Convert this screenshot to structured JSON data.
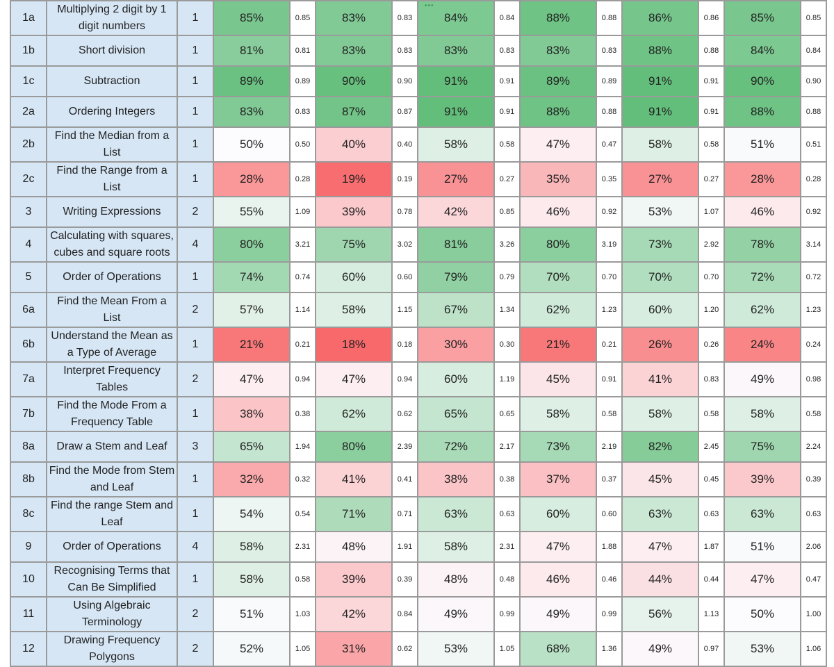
{
  "colors": {
    "header_cell": "#d6e6f5",
    "grid_line": "#9a9a9a",
    "scale_low": "#f8696b",
    "scale_mid": "#fcfcff",
    "scale_high": "#63be7b"
  },
  "groups": 6,
  "rows": [
    {
      "q": "1a",
      "topic": "Multiplying 2 digit by 1 digit numbers",
      "marks": "1",
      "pct": [
        "85%",
        "83%",
        "84%",
        "88%",
        "86%",
        "85%"
      ],
      "score": [
        "0.85",
        "0.83",
        "0.84",
        "0.88",
        "0.86",
        "0.85"
      ]
    },
    {
      "q": "1b",
      "topic": "Short division",
      "marks": "1",
      "pct": [
        "81%",
        "83%",
        "83%",
        "83%",
        "88%",
        "84%"
      ],
      "score": [
        "0.81",
        "0.83",
        "0.83",
        "0.83",
        "0.88",
        "0.84"
      ]
    },
    {
      "q": "1c",
      "topic": "Subtraction",
      "marks": "1",
      "pct": [
        "89%",
        "90%",
        "91%",
        "89%",
        "91%",
        "90%"
      ],
      "score": [
        "0.89",
        "0.90",
        "0.91",
        "0.89",
        "0.91",
        "0.90"
      ]
    },
    {
      "q": "2a",
      "topic": "Ordering Integers",
      "marks": "1",
      "pct": [
        "83%",
        "87%",
        "91%",
        "88%",
        "91%",
        "88%"
      ],
      "score": [
        "0.83",
        "0.87",
        "0.91",
        "0.88",
        "0.91",
        "0.88"
      ]
    },
    {
      "q": "2b",
      "topic": "Find the Median from a List",
      "marks": "1",
      "pct": [
        "50%",
        "40%",
        "58%",
        "47%",
        "58%",
        "51%"
      ],
      "score": [
        "0.50",
        "0.40",
        "0.58",
        "0.47",
        "0.58",
        "0.51"
      ]
    },
    {
      "q": "2c",
      "topic": "Find the Range from a List",
      "marks": "1",
      "pct": [
        "28%",
        "19%",
        "27%",
        "35%",
        "27%",
        "28%"
      ],
      "score": [
        "0.28",
        "0.19",
        "0.27",
        "0.35",
        "0.27",
        "0.28"
      ]
    },
    {
      "q": "3",
      "topic": "Writing Expressions",
      "marks": "2",
      "pct": [
        "55%",
        "39%",
        "42%",
        "46%",
        "53%",
        "46%"
      ],
      "score": [
        "1.09",
        "0.78",
        "0.85",
        "0.92",
        "1.07",
        "0.92"
      ]
    },
    {
      "q": "4",
      "topic": "Calculating with squares, cubes and square roots",
      "marks": "4",
      "pct": [
        "80%",
        "75%",
        "81%",
        "80%",
        "73%",
        "78%"
      ],
      "score": [
        "3.21",
        "3.02",
        "3.26",
        "3.19",
        "2.92",
        "3.14"
      ]
    },
    {
      "q": "5",
      "topic": "Order of Operations",
      "marks": "1",
      "pct": [
        "74%",
        "60%",
        "79%",
        "70%",
        "70%",
        "72%"
      ],
      "score": [
        "0.74",
        "0.60",
        "0.79",
        "0.70",
        "0.70",
        "0.72"
      ]
    },
    {
      "q": "6a",
      "topic": "Find the Mean From a List",
      "marks": "2",
      "pct": [
        "57%",
        "58%",
        "67%",
        "62%",
        "60%",
        "62%"
      ],
      "score": [
        "1.14",
        "1.15",
        "1.34",
        "1.23",
        "1.20",
        "1.23"
      ]
    },
    {
      "q": "6b",
      "topic": "Understand the Mean as a Type of Average",
      "marks": "1",
      "pct": [
        "21%",
        "18%",
        "30%",
        "21%",
        "26%",
        "24%"
      ],
      "score": [
        "0.21",
        "0.18",
        "0.30",
        "0.21",
        "0.26",
        "0.24"
      ]
    },
    {
      "q": "7a",
      "topic": "Interpret Frequency Tables",
      "marks": "2",
      "pct": [
        "47%",
        "47%",
        "60%",
        "45%",
        "41%",
        "49%"
      ],
      "score": [
        "0.94",
        "0.94",
        "1.19",
        "0.91",
        "0.83",
        "0.98"
      ]
    },
    {
      "q": "7b",
      "topic": "Find the Mode From a Frequency Table",
      "marks": "1",
      "pct": [
        "38%",
        "62%",
        "65%",
        "58%",
        "58%",
        "58%"
      ],
      "score": [
        "0.38",
        "0.62",
        "0.65",
        "0.58",
        "0.58",
        "0.58"
      ]
    },
    {
      "q": "8a",
      "topic": "Draw a Stem and Leaf",
      "marks": "3",
      "pct": [
        "65%",
        "80%",
        "72%",
        "73%",
        "82%",
        "75%"
      ],
      "score": [
        "1.94",
        "2.39",
        "2.17",
        "2.19",
        "2.45",
        "2.24"
      ]
    },
    {
      "q": "8b",
      "topic": "Find the Mode from Stem and Leaf",
      "marks": "1",
      "pct": [
        "32%",
        "41%",
        "38%",
        "37%",
        "45%",
        "39%"
      ],
      "score": [
        "0.32",
        "0.41",
        "0.38",
        "0.37",
        "0.45",
        "0.39"
      ]
    },
    {
      "q": "8c",
      "topic": "Find the range Stem and Leaf",
      "marks": "1",
      "pct": [
        "54%",
        "71%",
        "63%",
        "60%",
        "63%",
        "63%"
      ],
      "score": [
        "0.54",
        "0.71",
        "0.63",
        "0.60",
        "0.63",
        "0.63"
      ]
    },
    {
      "q": "9",
      "topic": "Order of Operations",
      "marks": "4",
      "pct": [
        "58%",
        "48%",
        "58%",
        "47%",
        "47%",
        "51%"
      ],
      "score": [
        "2.31",
        "1.91",
        "2.31",
        "1.88",
        "1.87",
        "2.06"
      ]
    },
    {
      "q": "10",
      "topic": "Recognising Terms that Can Be Simplified",
      "marks": "1",
      "pct": [
        "58%",
        "39%",
        "48%",
        "46%",
        "44%",
        "47%"
      ],
      "score": [
        "0.58",
        "0.39",
        "0.48",
        "0.46",
        "0.44",
        "0.47"
      ]
    },
    {
      "q": "11",
      "topic": "Using Algebraic Terminology",
      "marks": "2",
      "pct": [
        "51%",
        "42%",
        "49%",
        "49%",
        "56%",
        "50%"
      ],
      "score": [
        "1.03",
        "0.84",
        "0.99",
        "0.99",
        "1.13",
        "1.00"
      ]
    },
    {
      "q": "12",
      "topic": "Drawing Frequency Polygons",
      "marks": "2",
      "pct": [
        "52%",
        "31%",
        "53%",
        "68%",
        "49%",
        "53%"
      ],
      "score": [
        "1.05",
        "0.62",
        "1.05",
        "1.36",
        "0.97",
        "1.06"
      ]
    }
  ]
}
